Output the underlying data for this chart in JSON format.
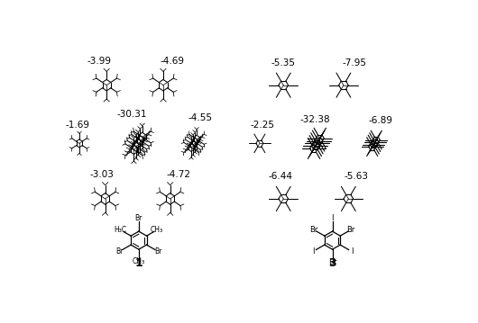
{
  "background_color": "#ffffff",
  "label1": "1",
  "label3": "3",
  "energies_crystal1": {
    "top_left": "-3.99",
    "top_right": "-4.69",
    "mid_left": "-1.69",
    "mid_center": "-30.31",
    "mid_right": "-4.55",
    "bot_left": "-3.03",
    "bot_right": "-4.72"
  },
  "energies_crystal3": {
    "top_left": "-5.35",
    "top_right": "-7.95",
    "mid_left": "-2.25",
    "mid_center": "-32.38",
    "mid_right": "-6.89",
    "bot_left": "-6.44",
    "bot_right": "-5.63"
  }
}
